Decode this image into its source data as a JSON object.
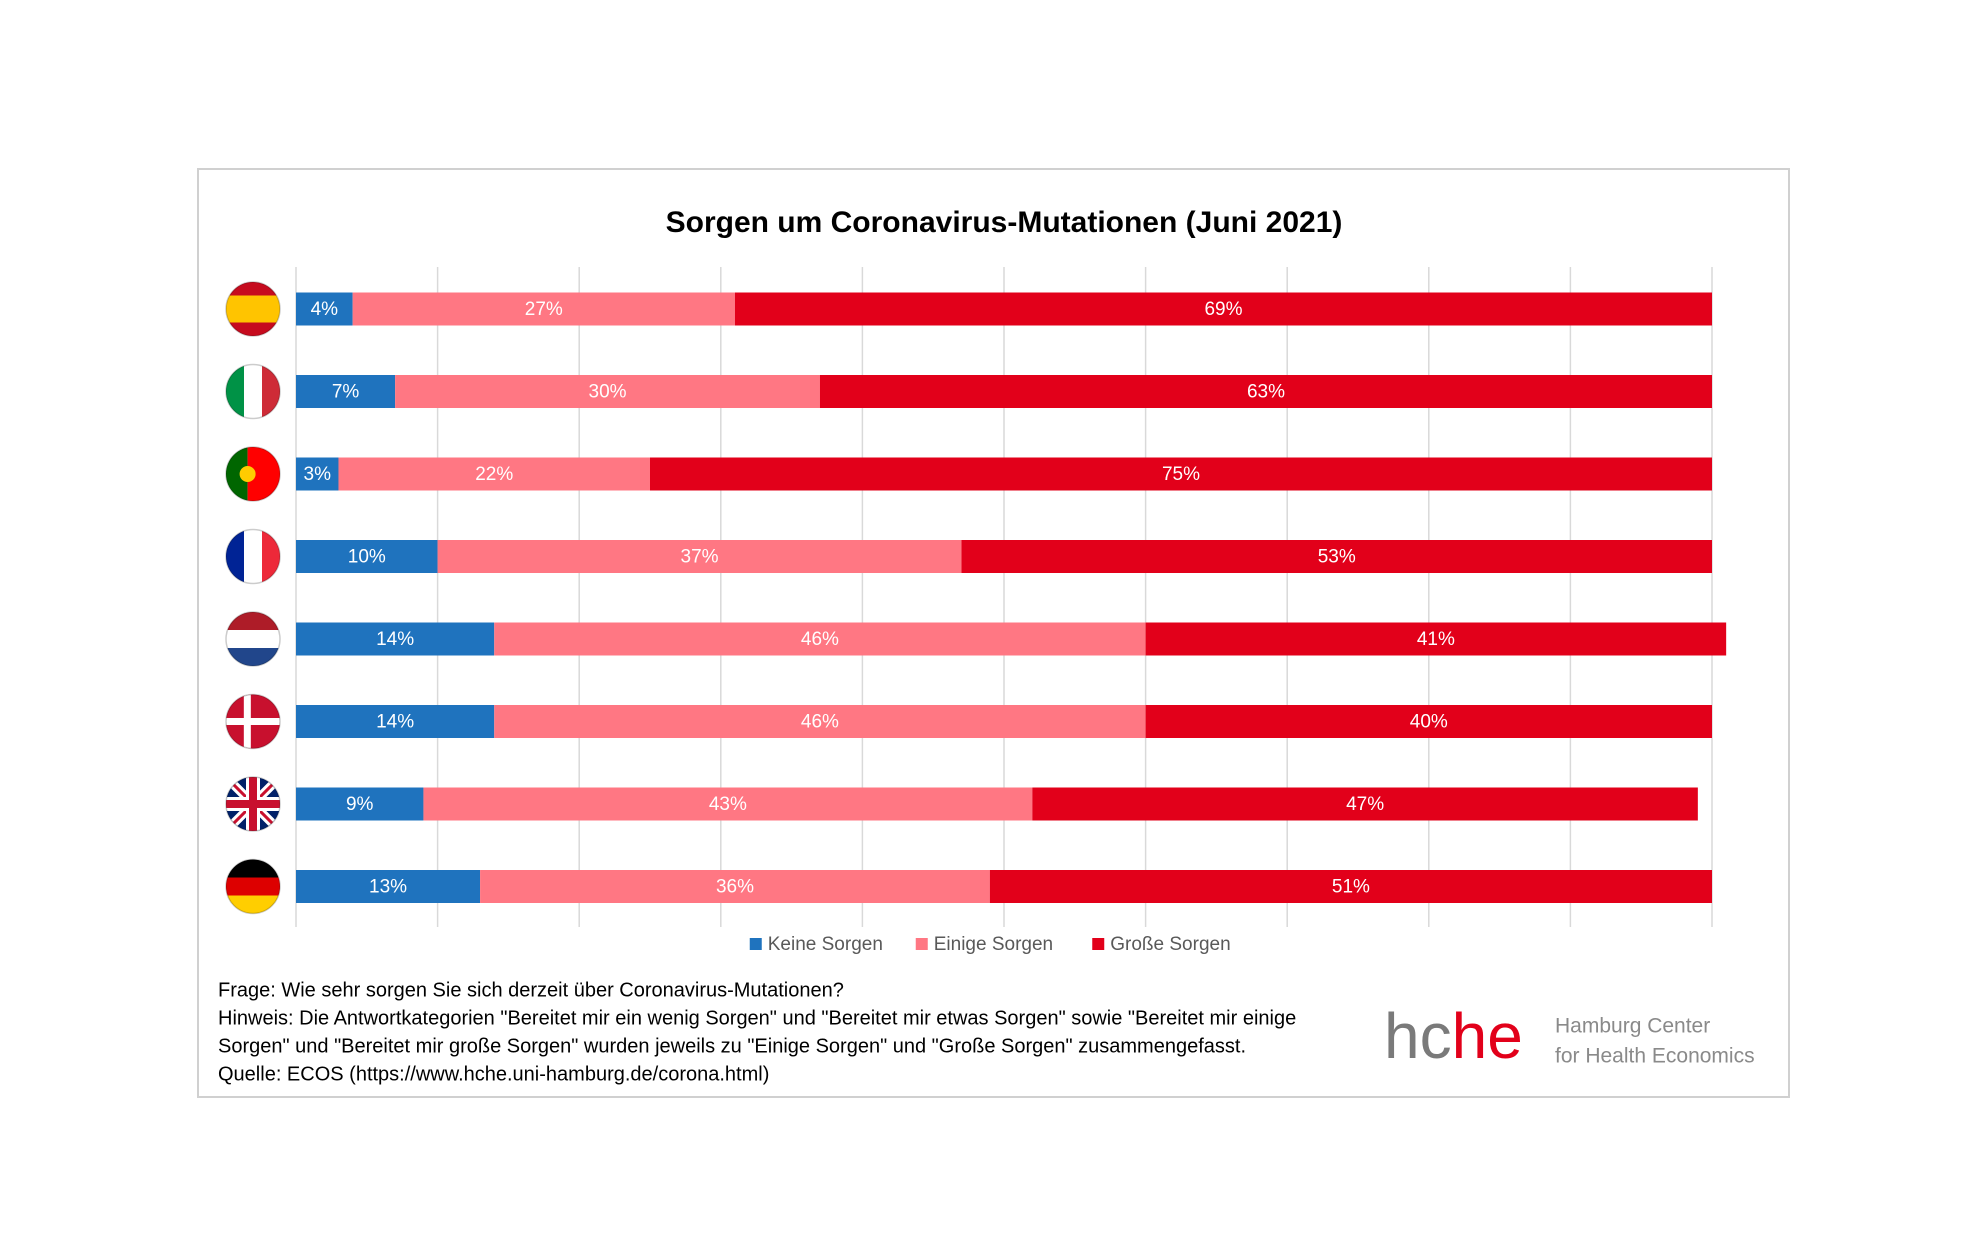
{
  "chart_data": {
    "type": "stacked-bar-horizontal",
    "title": "Sorgen um Coronavirus-Mutationen (Juni 2021)",
    "categories": [
      null,
      null,
      null,
      null,
      null,
      null,
      null,
      null
    ],
    "series": [
      {
        "name": "Keine Sorgen",
        "color": "#1f73be",
        "values": [
          4,
          7,
          3,
          10,
          14,
          14,
          9,
          13
        ],
        "value_labels": [
          "4%",
          "7%",
          "3%",
          "10%",
          "14%",
          "14%",
          "9%",
          "13%"
        ]
      },
      {
        "name": "Einige Sorgen",
        "color": "#ff7783",
        "values": [
          27,
          30,
          22,
          37,
          46,
          46,
          43,
          36
        ],
        "value_labels": [
          "27%",
          "30%",
          "22%",
          "37%",
          "46%",
          "46%",
          "43%",
          "36%"
        ]
      },
      {
        "name": "Große Sorgen",
        "color": "#e2001a",
        "values": [
          69,
          63,
          75,
          53,
          41,
          40,
          47,
          51
        ],
        "value_labels": [
          "69%",
          "63%",
          "75%",
          "53%",
          "41%",
          "40%",
          "47%",
          "51%"
        ]
      }
    ],
    "xlim": [
      0,
      100
    ],
    "xticks": [
      0,
      10,
      20,
      30,
      40,
      50,
      60,
      70,
      80,
      90,
      100
    ],
    "grid": true,
    "legend": "bottom"
  },
  "notes": [
    "Frage: Wie sehr sorgen Sie sich derzeit über  Coronavirus-Mutationen?",
    "Hinweis: Die Antwortkategorien \"Bereitet mir ein wenig Sorgen\" und \"Bereitet mir etwas Sorgen\" sowie \"Bereitet mir einige",
    "Sorgen\" und \"Bereitet mir große Sorgen\" wurden jeweils zu \"Einige Sorgen\" und \"Große Sorgen\" zusammengefasst.",
    "Quelle: ECOS (https://www.hche.uni-hamburg.de/corona.html)"
  ],
  "logo": {
    "mark": [
      "hc",
      "he"
    ],
    "name": [
      "Hamburg Center",
      "for Health Economics"
    ]
  }
}
